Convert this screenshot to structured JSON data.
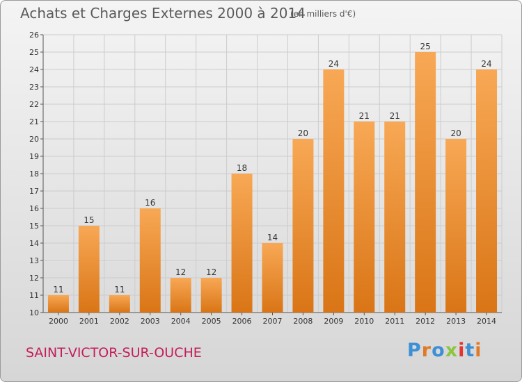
{
  "title": "Achats et Charges Externes 2000 à 2014",
  "unit_note": "(en milliers d'€)",
  "commune": "SAINT-VICTOR-SUR-OUCHE",
  "logo": {
    "text": "Proxiti",
    "colors": [
      "#3d8fd6",
      "#e07a26",
      "#3d8fd6",
      "#8cc63f",
      "#e3342f",
      "#3d8fd6",
      "#e07a26"
    ]
  },
  "colors": {
    "bar_top": "#f8a855",
    "bar_bottom": "#d97516",
    "grid": "#cccccc",
    "title": "#5a5a5a",
    "commune": "#c41d5a"
  },
  "chart_data": {
    "type": "bar",
    "title": "Achats et Charges Externes 2000 à 2014",
    "subtitle": "(en milliers d'€)",
    "xlabel": "",
    "ylabel": "",
    "ylim": [
      10,
      26
    ],
    "grid": true,
    "categories": [
      "2000",
      "2001",
      "2002",
      "2003",
      "2004",
      "2005",
      "2006",
      "2007",
      "2008",
      "2009",
      "2010",
      "2011",
      "2012",
      "2013",
      "2014"
    ],
    "values": [
      11,
      15,
      11,
      16,
      12,
      12,
      18,
      14,
      20,
      24,
      21,
      21,
      25,
      20,
      24
    ]
  }
}
